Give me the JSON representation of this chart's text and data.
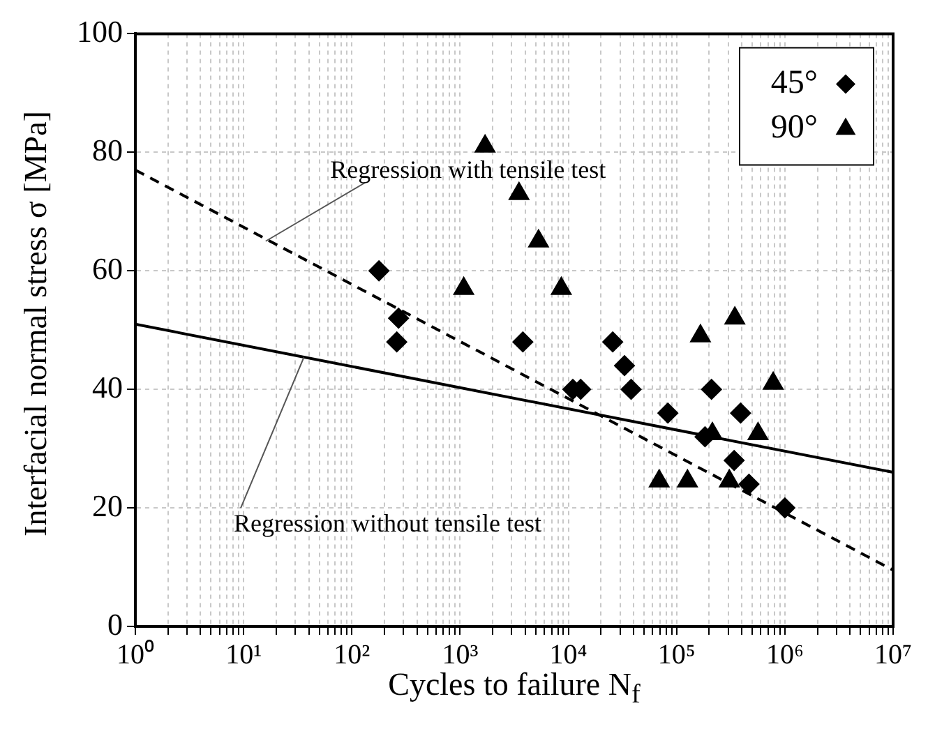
{
  "chart_data": {
    "type": "scatter",
    "xlabel": "Cycles to failure N$_{f}$",
    "ylabel": "Interfacial normal stress σ [MPa]",
    "log": "x",
    "xlim": [
      1,
      10000000
    ],
    "ylim": [
      0,
      100
    ],
    "xticks": [
      {
        "value": 1,
        "label": "10⁰"
      },
      {
        "value": 2,
        "label": null
      },
      {
        "value": 3,
        "label": null
      },
      {
        "value": 4,
        "label": null
      },
      {
        "value": 5,
        "label": null
      },
      {
        "value": 6,
        "label": null
      },
      {
        "value": 7,
        "label": null
      },
      {
        "value": 8,
        "label": null
      },
      {
        "value": 9,
        "label": null
      },
      {
        "value": 10,
        "label": "10¹"
      },
      {
        "value": 20,
        "label": null
      },
      {
        "value": 30,
        "label": null
      },
      {
        "value": 40,
        "label": null
      },
      {
        "value": 50,
        "label": null
      },
      {
        "value": 60,
        "label": null
      },
      {
        "value": 70,
        "label": null
      },
      {
        "value": 80,
        "label": null
      },
      {
        "value": 90,
        "label": null
      },
      {
        "value": 100,
        "label": "10²"
      },
      {
        "value": 200,
        "label": null
      },
      {
        "value": 300,
        "label": null
      },
      {
        "value": 400,
        "label": null
      },
      {
        "value": 500,
        "label": null
      },
      {
        "value": 600,
        "label": null
      },
      {
        "value": 700,
        "label": null
      },
      {
        "value": 800,
        "label": null
      },
      {
        "value": 900,
        "label": null
      },
      {
        "value": 1000,
        "label": "10³"
      },
      {
        "value": 2000,
        "label": null
      },
      {
        "value": 3000,
        "label": null
      },
      {
        "value": 4000,
        "label": null
      },
      {
        "value": 5000,
        "label": null
      },
      {
        "value": 6000,
        "label": null
      },
      {
        "value": 7000,
        "label": null
      },
      {
        "value": 8000,
        "label": null
      },
      {
        "value": 9000,
        "label": null
      },
      {
        "value": 10000,
        "label": "10⁴"
      },
      {
        "value": 20000,
        "label": null
      },
      {
        "value": 30000,
        "label": null
      },
      {
        "value": 40000,
        "label": null
      },
      {
        "value": 50000,
        "label": null
      },
      {
        "value": 60000,
        "label": null
      },
      {
        "value": 70000,
        "label": null
      },
      {
        "value": 80000,
        "label": null
      },
      {
        "value": 90000,
        "label": null
      },
      {
        "value": 100000,
        "label": "10⁵"
      },
      {
        "value": 200000,
        "label": null
      },
      {
        "value": 300000,
        "label": null
      },
      {
        "value": 400000,
        "label": null
      },
      {
        "value": 500000,
        "label": null
      },
      {
        "value": 600000,
        "label": null
      },
      {
        "value": 700000,
        "label": null
      },
      {
        "value": 800000,
        "label": null
      },
      {
        "value": 900000,
        "label": null
      },
      {
        "value": 1000000,
        "label": "10⁶"
      },
      {
        "value": 2000000,
        "label": null
      },
      {
        "value": 3000000,
        "label": null
      },
      {
        "value": 4000000,
        "label": null
      },
      {
        "value": 5000000,
        "label": null
      },
      {
        "value": 6000000,
        "label": null
      },
      {
        "value": 7000000,
        "label": null
      },
      {
        "value": 8000000,
        "label": null
      },
      {
        "value": 9000000,
        "label": null
      },
      {
        "value": 10000000,
        "label": "10⁷"
      }
    ],
    "yticks": [
      0,
      20,
      40,
      60,
      80,
      100
    ],
    "grid": true,
    "legend": "top right",
    "series": [
      {
        "name": "45°",
        "type": "scatter",
        "marker": "diamond",
        "color": "#000000",
        "x": [
          178,
          270,
          260,
          3800,
          11000,
          13000,
          25700,
          33000,
          38000,
          210000,
          83000,
          390000,
          183000,
          340000,
          466000,
          1000000
        ],
        "values": [
          60,
          52,
          48,
          48,
          40,
          40,
          48,
          44,
          40,
          40,
          36,
          36,
          32,
          28,
          24,
          20
        ]
      },
      {
        "name": "90°",
        "type": "scatter",
        "marker": "triangle",
        "color": "#000000",
        "x": [
          1700,
          3500,
          5300,
          1080,
          8600,
          345000,
          166000,
          780000,
          214000,
          565000,
          69000,
          126000,
          307000
        ],
        "values": [
          81,
          73,
          65,
          57,
          57,
          52,
          49,
          41,
          32.5,
          32.5,
          24.5,
          24.5,
          24.5
        ]
      },
      {
        "type": "line",
        "marker": "none",
        "line_style": "dashed",
        "color": "#000000",
        "x": [
          1,
          10000000
        ],
        "values": [
          77,
          9.5
        ]
      },
      {
        "type": "line",
        "marker": "none",
        "line_style": "solid",
        "color": "#000000",
        "x": [
          1,
          10000000
        ],
        "values": [
          51,
          26
        ]
      }
    ],
    "annotations": [
      {
        "text": "Regression with tensile test",
        "x": 16,
        "y": 65
      },
      {
        "text": "Regression without tensile test",
        "x": 36,
        "y": 45.4
      }
    ]
  }
}
